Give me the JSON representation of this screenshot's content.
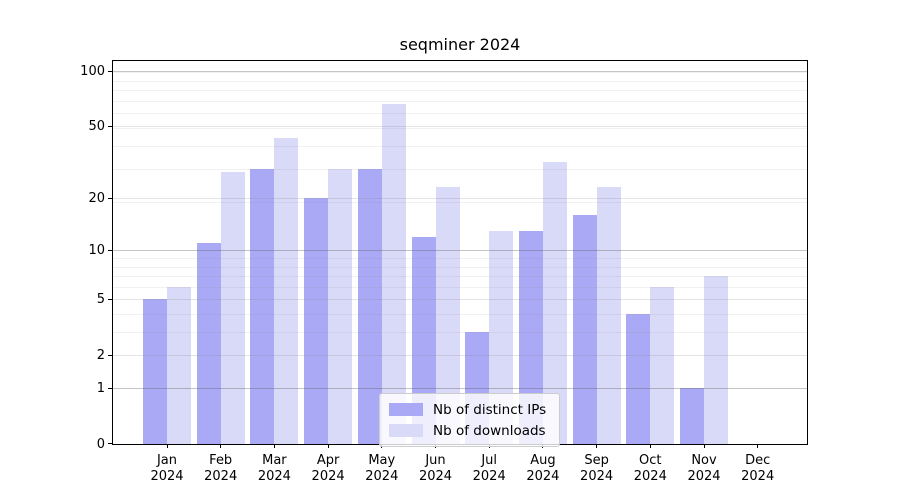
{
  "title": "seqminer 2024",
  "chart_data": {
    "type": "bar",
    "title": "seqminer 2024",
    "categories": [
      "Jan 2024",
      "Feb 2024",
      "Mar 2024",
      "Apr 2024",
      "May 2024",
      "Jun 2024",
      "Jul 2024",
      "Aug 2024",
      "Sep 2024",
      "Oct 2024",
      "Nov 2024",
      "Dec 2024"
    ],
    "series": [
      {
        "name": "Nb of distinct IPs",
        "color": "#a9a9f5",
        "values": [
          5,
          11,
          29,
          20,
          29,
          12,
          3,
          13,
          16,
          4,
          1,
          0
        ]
      },
      {
        "name": "Nb of downloads",
        "color": "#d9d9f8",
        "values": [
          6,
          28,
          43,
          29,
          66,
          23,
          13,
          32,
          23,
          6,
          7,
          0
        ]
      }
    ],
    "xlabel": "",
    "ylabel": "",
    "yscale": "log1p",
    "yticks": [
      0,
      1,
      2,
      5,
      10,
      20,
      50,
      100
    ],
    "ylim": [
      0,
      115
    ],
    "grid": "horizontal, major and minor",
    "legend_position": "lower center inside plot"
  },
  "colors": {
    "major_grid_emphasis": "rgba(100,100,100,0.38)",
    "major_grid": "rgba(130,130,130,0.22)",
    "minor_grid": "rgba(140,140,140,0.12)",
    "axis": "#000000",
    "background": "#ffffff"
  }
}
